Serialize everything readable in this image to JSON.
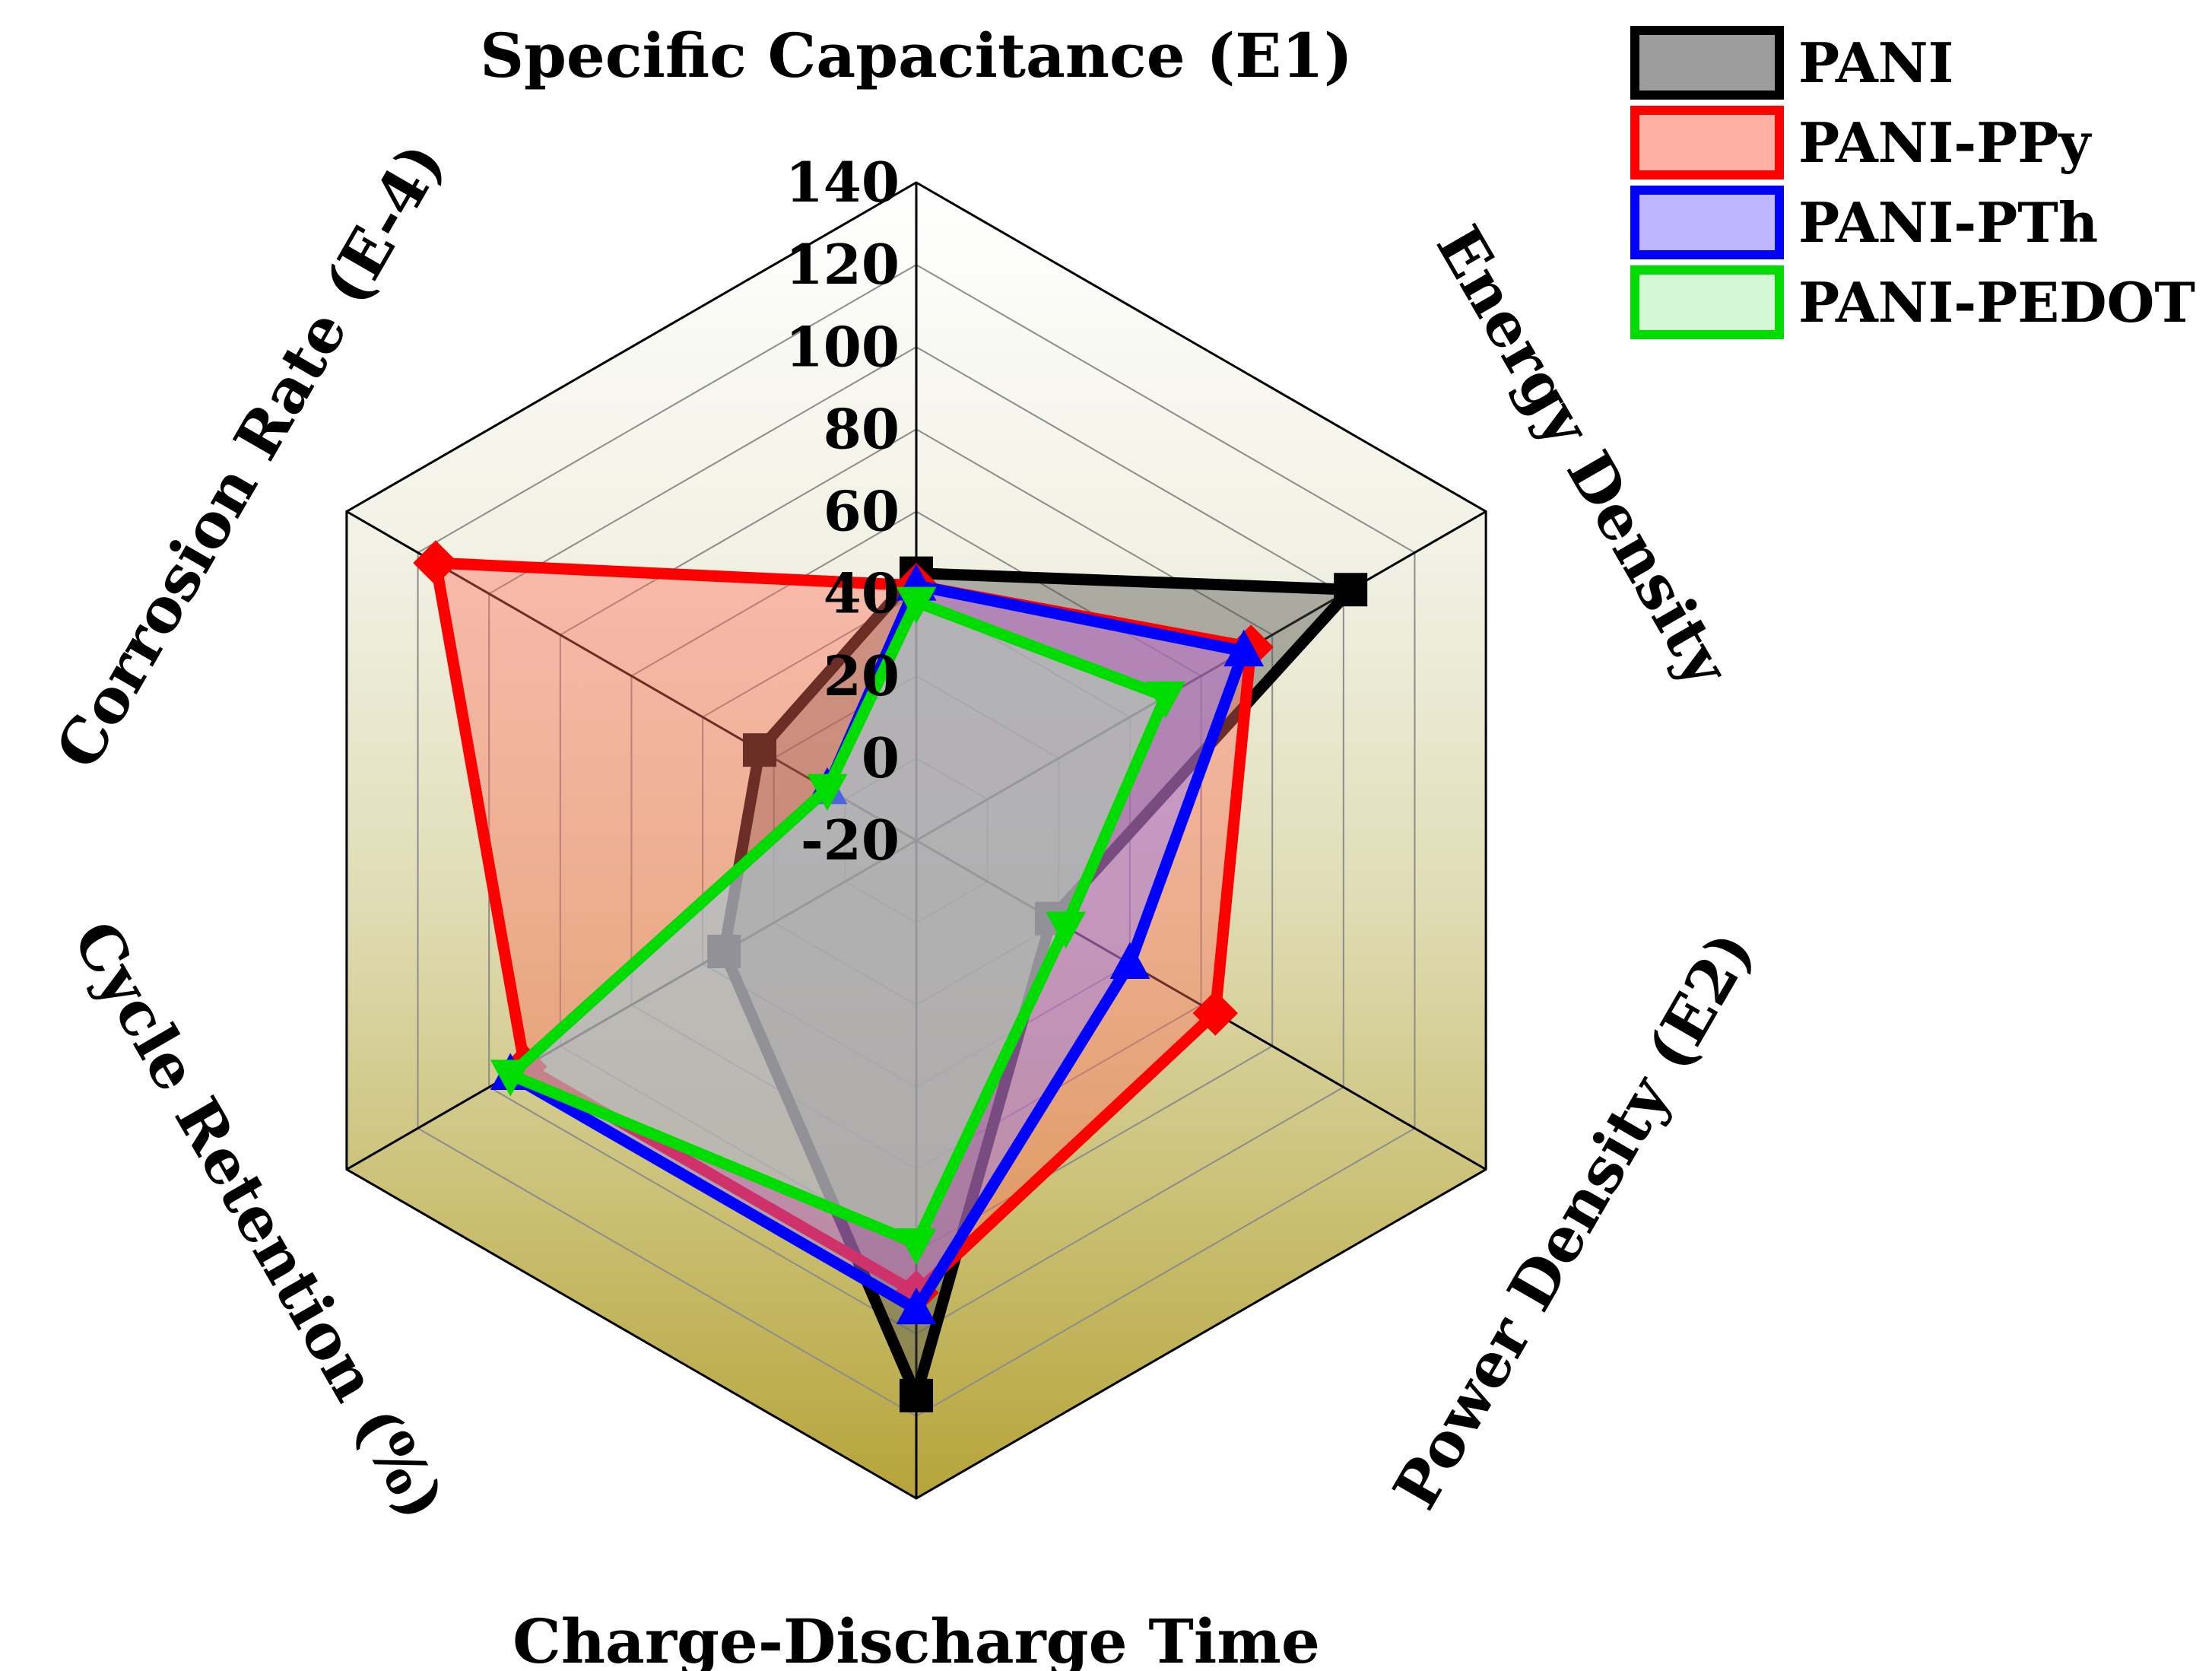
{
  "chart_data": {
    "type": "radar",
    "title": "",
    "axes": [
      "Specific Capacitance  (E1)",
      "Energy Density",
      "Power Density (E2)",
      "Charge-Discharge Time",
      "Cycle Retention (%)",
      "Corrosion Rate (E-4)"
    ],
    "radial_range": [
      -20,
      140
    ],
    "radial_ticks": [
      "-20",
      "0",
      "20",
      "40",
      "60",
      "80",
      "100",
      "120",
      "140"
    ],
    "grid": true,
    "legend": {
      "position": "top-right"
    },
    "series": [
      {
        "name": "PANI",
        "color": "#000000",
        "fill": "#4d4d4d",
        "marker": "square",
        "values": [
          45,
          102,
          18,
          115,
          34,
          24
        ]
      },
      {
        "name": "PANI-PPy",
        "color": "#ff0000",
        "fill": "#ff6e5a",
        "marker": "diamond",
        "values": [
          42,
          74,
          64,
          90,
          90,
          115
        ]
      },
      {
        "name": "PANI-PTh",
        "color": "#0000ff",
        "fill": "#8c78ff",
        "marker": "triangle",
        "values": [
          42,
          72,
          40,
          94,
          94,
          5
        ]
      },
      {
        "name": "PANI-PEDOT",
        "color": "#00dc00",
        "fill": "#b4f0b4",
        "marker": "triangle-down",
        "values": [
          38,
          50,
          22,
          78,
          94,
          5
        ]
      }
    ]
  }
}
